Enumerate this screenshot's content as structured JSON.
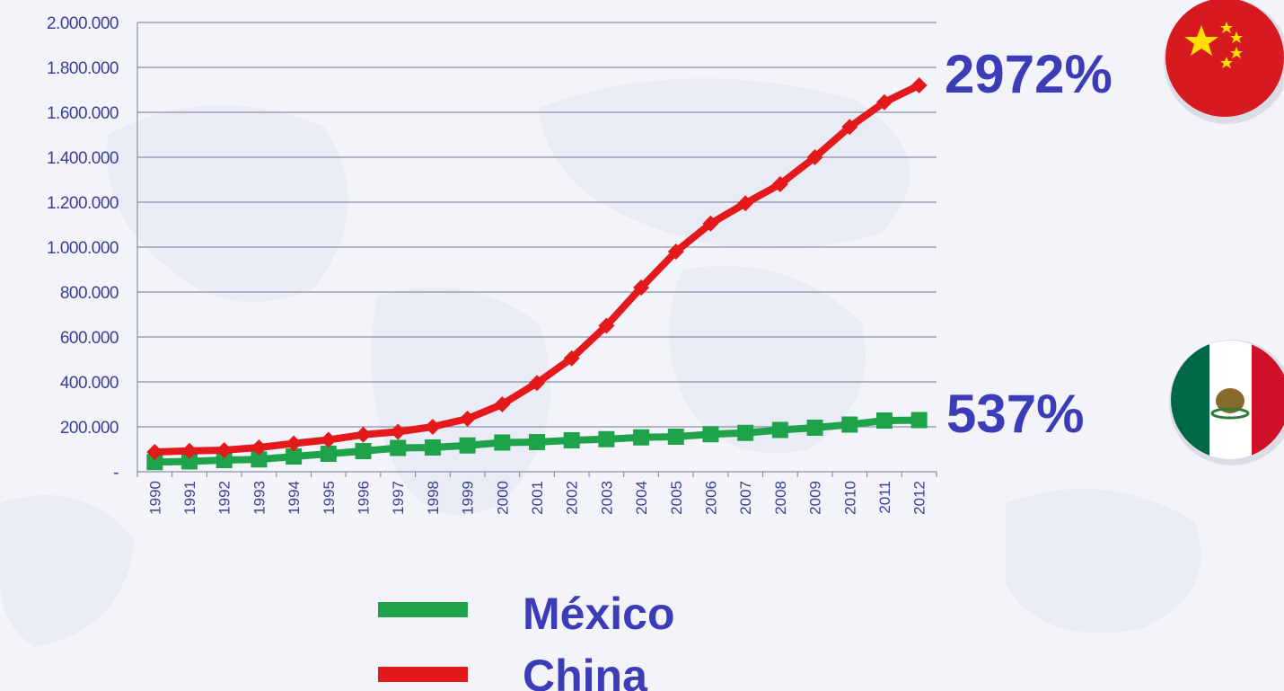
{
  "chart_data": {
    "type": "line",
    "title": "",
    "xlabel": "",
    "ylabel": "",
    "ylim": [
      0,
      2000000
    ],
    "y_ticks": [
      {
        "value": 0,
        "label": "-"
      },
      {
        "value": 200000,
        "label": "200.000"
      },
      {
        "value": 400000,
        "label": "400.000"
      },
      {
        "value": 600000,
        "label": "600.000"
      },
      {
        "value": 800000,
        "label": "800.000"
      },
      {
        "value": 1000000,
        "label": "1.000.000"
      },
      {
        "value": 1200000,
        "label": "1.200.000"
      },
      {
        "value": 1400000,
        "label": "1.400.000"
      },
      {
        "value": 1600000,
        "label": "1.600.000"
      },
      {
        "value": 1800000,
        "label": "1.800.000"
      },
      {
        "value": 2000000,
        "label": "2.000.000"
      }
    ],
    "grid": true,
    "legend_position": "bottom-center",
    "x": [
      "1990",
      "1991",
      "1992",
      "1993",
      "1994",
      "1995",
      "1996",
      "1997",
      "1998",
      "1999",
      "2000",
      "2001",
      "2002",
      "2003",
      "2004",
      "2005",
      "2006",
      "2007",
      "2008",
      "2009",
      "2010",
      "2011",
      "2012"
    ],
    "series": [
      {
        "name": "China",
        "color": "#e3191c",
        "marker": "diamond",
        "values": [
          88000,
          93000,
          96000,
          108000,
          126000,
          142000,
          165000,
          178000,
          200000,
          236000,
          300000,
          395000,
          505000,
          650000,
          820000,
          980000,
          1105000,
          1195000,
          1280000,
          1400000,
          1535000,
          1645000,
          1720000
        ],
        "annotation": "2972%"
      },
      {
        "name": "México",
        "color": "#1fa34a",
        "marker": "square",
        "values": [
          43000,
          46000,
          52000,
          55000,
          68000,
          80000,
          92000,
          106000,
          108000,
          117000,
          130000,
          132000,
          140000,
          145000,
          153000,
          156000,
          167000,
          173000,
          186000,
          196000,
          210000,
          228000,
          230000
        ],
        "annotation": "537%"
      }
    ]
  },
  "legend": [
    {
      "label": "México",
      "color": "#1fa34a"
    },
    {
      "label": "China",
      "color": "#e3191c"
    }
  ],
  "flags": {
    "china": {
      "icon": "china-flag-icon",
      "red": "#d71920",
      "star": "#ffde00"
    },
    "mexico": {
      "icon": "mexico-flag-icon",
      "green": "#006847",
      "white": "#ffffff",
      "red": "#ce1126"
    }
  }
}
